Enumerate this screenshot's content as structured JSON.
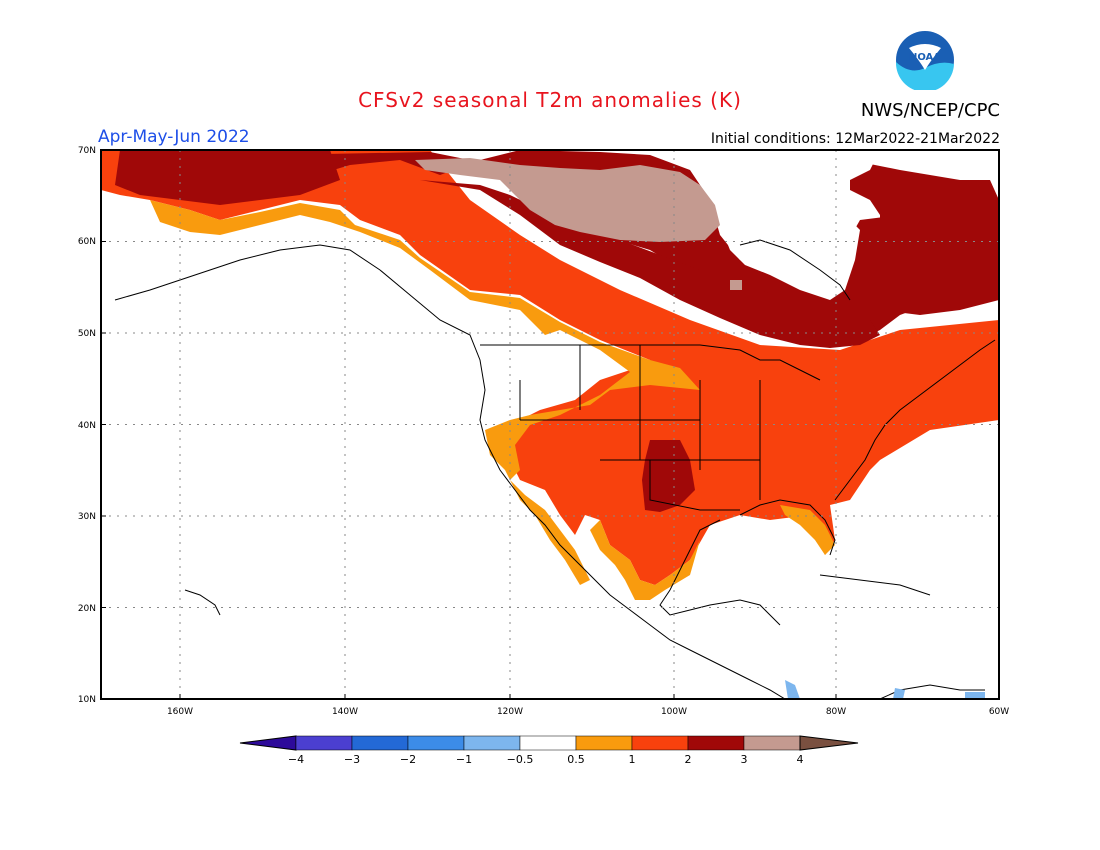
{
  "title": "CFSv2 seasonal T2m anomalies (K)",
  "agency": "NWS/NCEP/CPC",
  "season": "Apr-May-Jun 2022",
  "initial_conditions": "Initial conditions: 12Mar2022-21Mar2022",
  "logo_text": "NOAA",
  "lat_ticks": [
    "70N",
    "60N",
    "50N",
    "40N",
    "30N",
    "20N",
    "10N"
  ],
  "lon_ticks": [
    "160W",
    "140W",
    "120W",
    "100W",
    "80W",
    "60W"
  ],
  "colorbar": {
    "labels": [
      "-4",
      "-3",
      "-2",
      "-1",
      "-0.5",
      "0.5",
      "1",
      "2",
      "3",
      "4"
    ],
    "colors": [
      "#2d0a9a",
      "#4b3fd0",
      "#2369d6",
      "#3c8ce8",
      "#7db6ee",
      "#ffffff",
      "#f99b0e",
      "#f8410d",
      "#a00808",
      "#c49a90",
      "#7a5040"
    ]
  }
}
